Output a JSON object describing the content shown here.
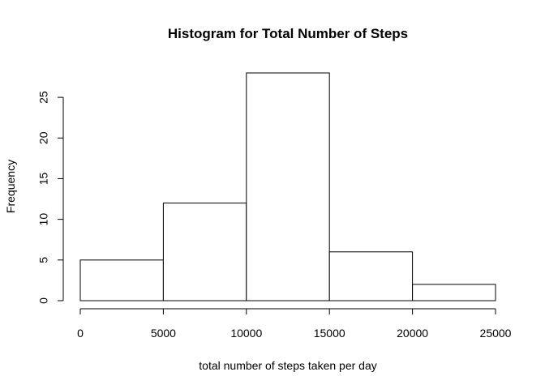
{
  "chart_data": {
    "type": "bar",
    "title": "Histogram for Total Number of Steps",
    "xlabel": "total number of steps taken per day",
    "ylabel": "Frequency",
    "bins": [
      {
        "from": 0,
        "to": 5000,
        "count": 5
      },
      {
        "from": 5000,
        "to": 10000,
        "count": 12
      },
      {
        "from": 10000,
        "to": 15000,
        "count": 28
      },
      {
        "from": 15000,
        "to": 20000,
        "count": 6
      },
      {
        "from": 20000,
        "to": 25000,
        "count": 2
      }
    ],
    "xlim": [
      0,
      25000
    ],
    "ylim": [
      0,
      28
    ],
    "xticks": [
      0,
      5000,
      10000,
      15000,
      20000,
      25000
    ],
    "yticks": [
      0,
      5,
      10,
      15,
      20,
      25
    ],
    "grid": false,
    "bar_fill": "#ffffff",
    "bar_stroke": "#000000"
  }
}
